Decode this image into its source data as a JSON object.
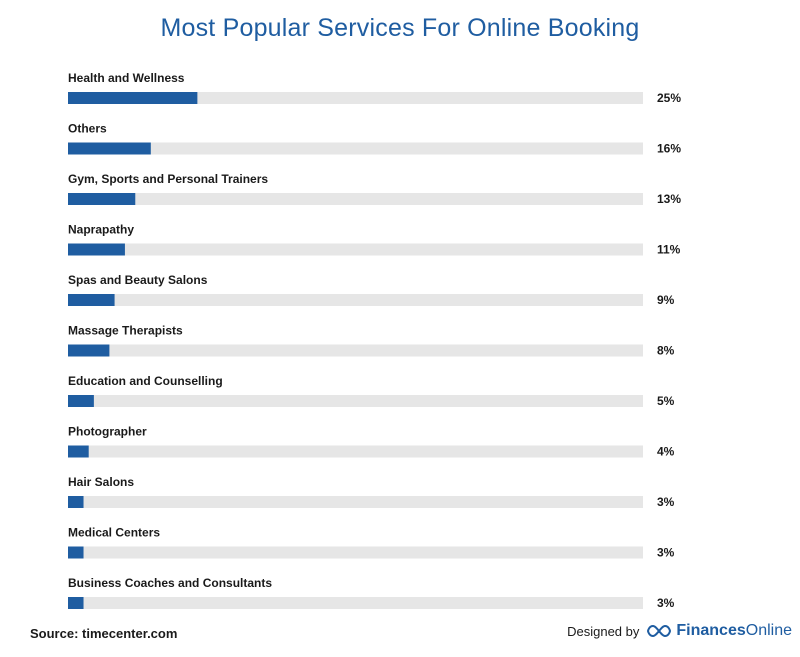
{
  "chart_data": {
    "type": "bar",
    "title": "Most Popular Services For Online Booking",
    "categories": [
      "Health and Wellness",
      "Others",
      "Gym, Sports and Personal Trainers",
      "Naprapathy",
      "Spas and Beauty Salons",
      "Massage Therapists",
      "Education and Counselling",
      "Photographer",
      "Hair Salons",
      "Medical Centers",
      "Business Coaches and Consultants"
    ],
    "values": [
      25,
      16,
      13,
      11,
      9,
      8,
      5,
      4,
      3,
      3,
      3
    ],
    "value_labels": [
      "25%",
      "16%",
      "13%",
      "11%",
      "9%",
      "8%",
      "5%",
      "4%",
      "3%",
      "3%",
      "3%"
    ],
    "unit": "%",
    "xlim": [
      0,
      100
    ],
    "bar_color": "#1f5da1",
    "track_color": "#e6e6e6"
  },
  "footer": {
    "source_label": "Source:",
    "source_value": "timecenter.com",
    "designed_by": "Designed by",
    "brand_left": "Finances",
    "brand_right": "Online"
  }
}
